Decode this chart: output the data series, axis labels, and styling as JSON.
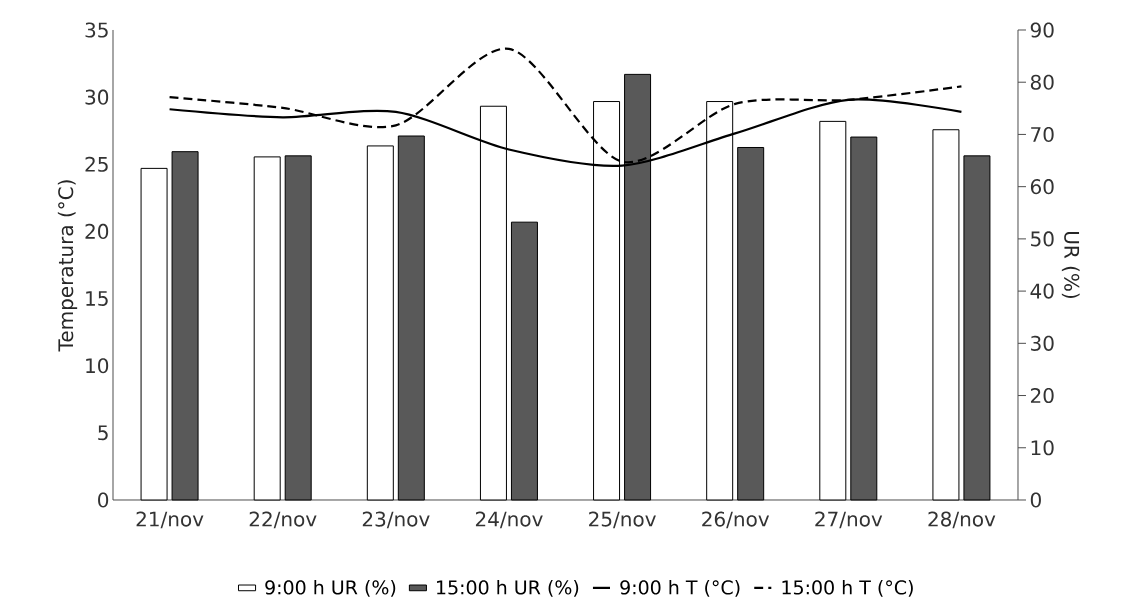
{
  "chart_data": {
    "type": "bar",
    "ylabel": "Temperatura (°C)",
    "y2label": "UR (%)",
    "categories": [
      "21/nov",
      "22/nov",
      "23/nov",
      "24/nov",
      "25/nov",
      "26/nov",
      "27/nov",
      "28/nov"
    ],
    "series": [
      {
        "name": "9:00 h UR (%)",
        "axis": "y2",
        "color": "#ffffff",
        "values": [
          63.5,
          65.7,
          67.8,
          75.4,
          76.3,
          76.3,
          72.5,
          70.9
        ]
      },
      {
        "name": "15:00 h UR (%)",
        "axis": "y2",
        "color": "#595959",
        "values": [
          66.7,
          65.9,
          69.7,
          53.2,
          81.5,
          67.5,
          69.5,
          65.9
        ]
      },
      {
        "name": "9:00 h T (°C)",
        "type": "line",
        "color": "#000000",
        "line_style": "solid",
        "values": [
          29.1,
          28.5,
          28.9,
          26.1,
          24.9,
          27.3,
          29.8,
          28.9
        ]
      },
      {
        "name": "15:00 h T (°C)",
        "type": "line",
        "color": "#000000",
        "line_style": "dashed",
        "values": [
          30.0,
          29.2,
          27.9,
          33.6,
          25.2,
          29.5,
          29.8,
          30.8
        ]
      }
    ],
    "ylim": [
      0,
      35
    ],
    "yticks": [
      0,
      5,
      10,
      15,
      20,
      25,
      30,
      35
    ],
    "y2lim": [
      0,
      90
    ],
    "y2ticks": [
      0,
      10,
      20,
      30,
      40,
      50,
      60,
      70,
      80,
      90
    ],
    "grid": false,
    "legend": "bottom"
  }
}
